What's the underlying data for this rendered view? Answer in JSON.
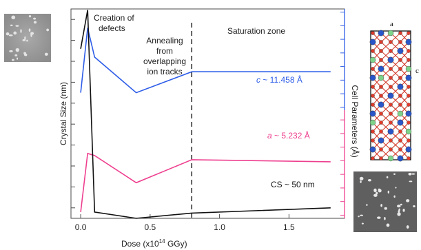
{
  "chart_data": {
    "type": "line",
    "xlabel": "Dose (x10",
    "xlabel_exp": "14",
    "xlabel_unit": " GGy)",
    "ylabel_left": "Crystal Size (nm)",
    "ylabel_right": "Cell Parameters (Å)",
    "xlim": [
      -0.07,
      1.9
    ],
    "x_ticks": [
      0.0,
      0.5,
      1.0,
      1.5
    ],
    "x_tick_labels": [
      "0.0",
      "0.5",
      "1.0",
      "1.5"
    ],
    "ylim": [
      0,
      10
    ],
    "left_ticks": [
      0.5,
      1.5,
      2.5,
      3.5,
      4.5,
      5.5,
      6.5,
      7.5,
      8.5,
      9.5
    ],
    "right_ticks_blue": [
      5.3,
      5.95,
      6.6,
      7.25,
      7.9,
      8.55,
      9.2,
      9.85
    ],
    "right_ticks_pink": [
      0.15,
      0.8,
      1.45,
      2.1,
      2.75,
      3.4,
      4.05,
      4.7
    ],
    "divider_x": 0.8,
    "grid": false,
    "colors": {
      "axis": "#4a4a4a",
      "blue": "#2e5de8",
      "pink": "#ee3f8f",
      "black": "#111111"
    },
    "series": [
      {
        "name": "c ~ 11.458 Å",
        "color": "#2e5de8",
        "x": [
          0.0,
          0.05,
          0.1,
          0.4,
          0.8,
          1.8
        ],
        "y": [
          6.0,
          9.1,
          7.7,
          6.0,
          7.0,
          7.0
        ]
      },
      {
        "name": "a ~ 5.232 Å",
        "color": "#ee3f8f",
        "x": [
          0.0,
          0.05,
          0.1,
          0.4,
          0.8,
          1.8
        ],
        "y": [
          0.3,
          3.1,
          3.0,
          1.7,
          2.8,
          2.7
        ]
      },
      {
        "name": "CS ~ 50 nm",
        "color": "#111111",
        "x": [
          0.0,
          0.05,
          0.1,
          0.4,
          0.8,
          1.8
        ],
        "y": [
          8.1,
          9.95,
          0.3,
          0.0,
          0.25,
          0.5
        ]
      }
    ],
    "annotations": {
      "creation": [
        "Creation of",
        "defects"
      ],
      "annealing": [
        "Annealing",
        "from",
        "overlapping",
        "ion tracks"
      ],
      "saturation": "Saturation zone",
      "label_c_var": "c",
      "label_c_val": " ~ 11.458 Å",
      "label_a_var": "a",
      "label_a_val": " ~ 5.232 Å",
      "label_cs": "CS ~ 50 nm"
    }
  },
  "insets": {
    "crystal_label_a": "a",
    "crystal_label_c": "c"
  }
}
